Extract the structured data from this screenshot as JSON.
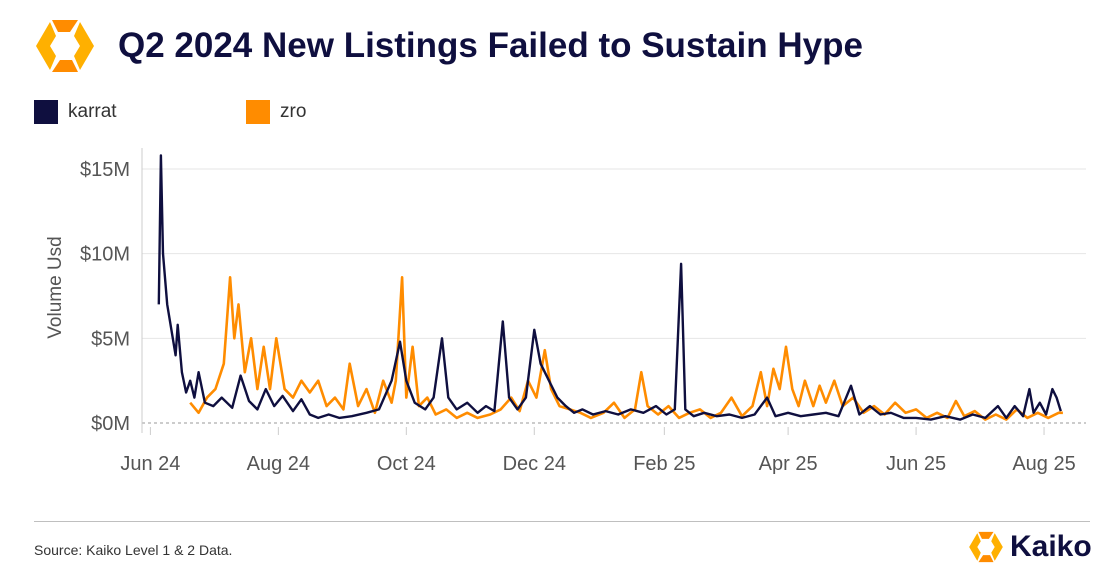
{
  "header": {
    "title": "Q2 2024 New Listings Failed to Sustain Hype"
  },
  "footer": {
    "source": "Source: Kaiko Level 1 & 2 Data.",
    "brand": "Kaiko"
  },
  "colors": {
    "navy": "#0f0f3f",
    "orange": "#ff8c00",
    "grid": "#e6e6e6"
  },
  "chart_data": {
    "type": "line",
    "ylabel": "Volume Usd",
    "ylim": [
      0,
      16
    ],
    "y_unit": "USD millions",
    "yticks": [
      0,
      5,
      10,
      15
    ],
    "ytick_labels": [
      "$0M",
      "$5M",
      "$10M",
      "$15M"
    ],
    "xlim": [
      "2024-05-28",
      "2025-08-21"
    ],
    "xticks": [
      "2024-06-01",
      "2024-08-01",
      "2024-10-01",
      "2024-12-01",
      "2025-02-01",
      "2025-04-01",
      "2025-06-01",
      "2025-08-01"
    ],
    "xtick_labels": [
      "Jun 24",
      "Aug 24",
      "Oct 24",
      "Dec 24",
      "Feb 25",
      "Apr 25",
      "Jun 25",
      "Aug 25"
    ],
    "legend_position": "top-left",
    "grid": true,
    "series": [
      {
        "name": "karrat",
        "color": "#0f0f3f",
        "points": [
          [
            "2024-06-05",
            7.0
          ],
          [
            "2024-06-06",
            15.8
          ],
          [
            "2024-06-07",
            10.0
          ],
          [
            "2024-06-09",
            7.0
          ],
          [
            "2024-06-11",
            5.5
          ],
          [
            "2024-06-13",
            4.0
          ],
          [
            "2024-06-14",
            5.8
          ],
          [
            "2024-06-16",
            3.0
          ],
          [
            "2024-06-18",
            1.8
          ],
          [
            "2024-06-20",
            2.5
          ],
          [
            "2024-06-22",
            1.5
          ],
          [
            "2024-06-24",
            3.0
          ],
          [
            "2024-06-27",
            1.2
          ],
          [
            "2024-07-01",
            1.0
          ],
          [
            "2024-07-05",
            1.5
          ],
          [
            "2024-07-10",
            0.9
          ],
          [
            "2024-07-14",
            2.8
          ],
          [
            "2024-07-18",
            1.3
          ],
          [
            "2024-07-22",
            0.8
          ],
          [
            "2024-07-26",
            2.0
          ],
          [
            "2024-07-30",
            1.0
          ],
          [
            "2024-08-03",
            1.6
          ],
          [
            "2024-08-08",
            0.7
          ],
          [
            "2024-08-12",
            1.4
          ],
          [
            "2024-08-16",
            0.5
          ],
          [
            "2024-08-20",
            0.3
          ],
          [
            "2024-08-25",
            0.5
          ],
          [
            "2024-08-30",
            0.3
          ],
          [
            "2024-09-05",
            0.4
          ],
          [
            "2024-09-12",
            0.6
          ],
          [
            "2024-09-18",
            0.8
          ],
          [
            "2024-09-24",
            2.5
          ],
          [
            "2024-09-28",
            4.8
          ],
          [
            "2024-10-01",
            2.5
          ],
          [
            "2024-10-05",
            1.2
          ],
          [
            "2024-10-10",
            0.8
          ],
          [
            "2024-10-14",
            1.5
          ],
          [
            "2024-10-18",
            5.0
          ],
          [
            "2024-10-21",
            1.5
          ],
          [
            "2024-10-25",
            0.8
          ],
          [
            "2024-10-30",
            1.2
          ],
          [
            "2024-11-04",
            0.6
          ],
          [
            "2024-11-08",
            1.0
          ],
          [
            "2024-11-12",
            0.7
          ],
          [
            "2024-11-16",
            6.0
          ],
          [
            "2024-11-19",
            1.5
          ],
          [
            "2024-11-23",
            0.8
          ],
          [
            "2024-11-27",
            1.5
          ],
          [
            "2024-12-01",
            5.5
          ],
          [
            "2024-12-04",
            3.5
          ],
          [
            "2024-12-08",
            2.5
          ],
          [
            "2024-12-12",
            1.5
          ],
          [
            "2024-12-16",
            1.0
          ],
          [
            "2024-12-20",
            0.6
          ],
          [
            "2024-12-24",
            0.8
          ],
          [
            "2024-12-29",
            0.5
          ],
          [
            "2025-01-04",
            0.7
          ],
          [
            "2025-01-10",
            0.5
          ],
          [
            "2025-01-16",
            0.8
          ],
          [
            "2025-01-22",
            0.6
          ],
          [
            "2025-01-28",
            1.0
          ],
          [
            "2025-02-02",
            0.5
          ],
          [
            "2025-02-06",
            0.8
          ],
          [
            "2025-02-09",
            9.4
          ],
          [
            "2025-02-11",
            0.8
          ],
          [
            "2025-02-15",
            0.4
          ],
          [
            "2025-02-20",
            0.6
          ],
          [
            "2025-02-26",
            0.4
          ],
          [
            "2025-03-04",
            0.5
          ],
          [
            "2025-03-10",
            0.3
          ],
          [
            "2025-03-16",
            0.5
          ],
          [
            "2025-03-22",
            1.5
          ],
          [
            "2025-03-26",
            0.4
          ],
          [
            "2025-04-01",
            0.6
          ],
          [
            "2025-04-07",
            0.4
          ],
          [
            "2025-04-13",
            0.5
          ],
          [
            "2025-04-19",
            0.6
          ],
          [
            "2025-04-25",
            0.4
          ],
          [
            "2025-05-01",
            2.2
          ],
          [
            "2025-05-05",
            0.5
          ],
          [
            "2025-05-10",
            1.0
          ],
          [
            "2025-05-15",
            0.5
          ],
          [
            "2025-05-20",
            0.6
          ],
          [
            "2025-05-26",
            0.3
          ],
          [
            "2025-06-01",
            0.3
          ],
          [
            "2025-06-08",
            0.2
          ],
          [
            "2025-06-15",
            0.4
          ],
          [
            "2025-06-22",
            0.2
          ],
          [
            "2025-06-28",
            0.5
          ],
          [
            "2025-07-04",
            0.3
          ],
          [
            "2025-07-10",
            1.0
          ],
          [
            "2025-07-14",
            0.3
          ],
          [
            "2025-07-18",
            1.0
          ],
          [
            "2025-07-22",
            0.4
          ],
          [
            "2025-07-25",
            2.0
          ],
          [
            "2025-07-27",
            0.6
          ],
          [
            "2025-07-30",
            1.2
          ],
          [
            "2025-08-02",
            0.5
          ],
          [
            "2025-08-05",
            2.0
          ],
          [
            "2025-08-07",
            1.5
          ],
          [
            "2025-08-09",
            0.7
          ]
        ]
      },
      {
        "name": "zro",
        "color": "#ff8c00",
        "points": [
          [
            "2024-06-20",
            1.2
          ],
          [
            "2024-06-24",
            0.6
          ],
          [
            "2024-06-28",
            1.5
          ],
          [
            "2024-07-02",
            2.0
          ],
          [
            "2024-07-06",
            3.5
          ],
          [
            "2024-07-09",
            8.6
          ],
          [
            "2024-07-11",
            5.0
          ],
          [
            "2024-07-13",
            7.0
          ],
          [
            "2024-07-16",
            3.0
          ],
          [
            "2024-07-19",
            5.0
          ],
          [
            "2024-07-22",
            2.0
          ],
          [
            "2024-07-25",
            4.5
          ],
          [
            "2024-07-28",
            2.0
          ],
          [
            "2024-07-31",
            5.0
          ],
          [
            "2024-08-04",
            2.0
          ],
          [
            "2024-08-08",
            1.5
          ],
          [
            "2024-08-12",
            2.5
          ],
          [
            "2024-08-16",
            1.8
          ],
          [
            "2024-08-20",
            2.5
          ],
          [
            "2024-08-24",
            1.0
          ],
          [
            "2024-08-28",
            1.5
          ],
          [
            "2024-09-01",
            0.8
          ],
          [
            "2024-09-04",
            3.5
          ],
          [
            "2024-09-08",
            1.0
          ],
          [
            "2024-09-12",
            2.0
          ],
          [
            "2024-09-16",
            0.6
          ],
          [
            "2024-09-20",
            2.5
          ],
          [
            "2024-09-24",
            1.2
          ],
          [
            "2024-09-26",
            2.5
          ],
          [
            "2024-09-29",
            8.6
          ],
          [
            "2024-10-01",
            1.5
          ],
          [
            "2024-10-04",
            4.5
          ],
          [
            "2024-10-07",
            1.0
          ],
          [
            "2024-10-11",
            1.5
          ],
          [
            "2024-10-15",
            0.5
          ],
          [
            "2024-10-20",
            0.8
          ],
          [
            "2024-10-25",
            0.3
          ],
          [
            "2024-10-30",
            0.6
          ],
          [
            "2024-11-04",
            0.3
          ],
          [
            "2024-11-10",
            0.5
          ],
          [
            "2024-11-15",
            0.8
          ],
          [
            "2024-11-20",
            1.5
          ],
          [
            "2024-11-24",
            0.7
          ],
          [
            "2024-11-28",
            2.5
          ],
          [
            "2024-12-02",
            1.5
          ],
          [
            "2024-12-06",
            4.3
          ],
          [
            "2024-12-09",
            2.0
          ],
          [
            "2024-12-13",
            1.0
          ],
          [
            "2024-12-18",
            0.8
          ],
          [
            "2024-12-23",
            0.6
          ],
          [
            "2024-12-28",
            0.3
          ],
          [
            "2025-01-03",
            0.6
          ],
          [
            "2025-01-08",
            1.2
          ],
          [
            "2025-01-13",
            0.3
          ],
          [
            "2025-01-18",
            0.8
          ],
          [
            "2025-01-21",
            3.0
          ],
          [
            "2025-01-24",
            1.0
          ],
          [
            "2025-01-29",
            0.5
          ],
          [
            "2025-02-03",
            1.0
          ],
          [
            "2025-02-08",
            0.3
          ],
          [
            "2025-02-13",
            0.6
          ],
          [
            "2025-02-18",
            0.8
          ],
          [
            "2025-02-23",
            0.3
          ],
          [
            "2025-02-28",
            0.6
          ],
          [
            "2025-03-05",
            1.5
          ],
          [
            "2025-03-10",
            0.4
          ],
          [
            "2025-03-15",
            1.0
          ],
          [
            "2025-03-19",
            3.0
          ],
          [
            "2025-03-22",
            1.0
          ],
          [
            "2025-03-25",
            3.2
          ],
          [
            "2025-03-28",
            2.0
          ],
          [
            "2025-03-31",
            4.5
          ],
          [
            "2025-04-03",
            2.0
          ],
          [
            "2025-04-06",
            1.0
          ],
          [
            "2025-04-09",
            2.5
          ],
          [
            "2025-04-13",
            1.0
          ],
          [
            "2025-04-16",
            2.2
          ],
          [
            "2025-04-19",
            1.2
          ],
          [
            "2025-04-23",
            2.5
          ],
          [
            "2025-04-27",
            1.0
          ],
          [
            "2025-05-02",
            1.5
          ],
          [
            "2025-05-07",
            0.6
          ],
          [
            "2025-05-12",
            1.0
          ],
          [
            "2025-05-17",
            0.5
          ],
          [
            "2025-05-22",
            1.2
          ],
          [
            "2025-05-27",
            0.6
          ],
          [
            "2025-06-01",
            0.8
          ],
          [
            "2025-06-06",
            0.3
          ],
          [
            "2025-06-11",
            0.6
          ],
          [
            "2025-06-16",
            0.3
          ],
          [
            "2025-06-20",
            1.3
          ],
          [
            "2025-06-24",
            0.4
          ],
          [
            "2025-06-29",
            0.7
          ],
          [
            "2025-07-04",
            0.2
          ],
          [
            "2025-07-09",
            0.5
          ],
          [
            "2025-07-14",
            0.2
          ],
          [
            "2025-07-19",
            0.8
          ],
          [
            "2025-07-24",
            0.3
          ],
          [
            "2025-07-29",
            0.6
          ],
          [
            "2025-08-03",
            0.3
          ],
          [
            "2025-08-08",
            0.6
          ],
          [
            "2025-08-10",
            0.6
          ]
        ]
      }
    ]
  }
}
